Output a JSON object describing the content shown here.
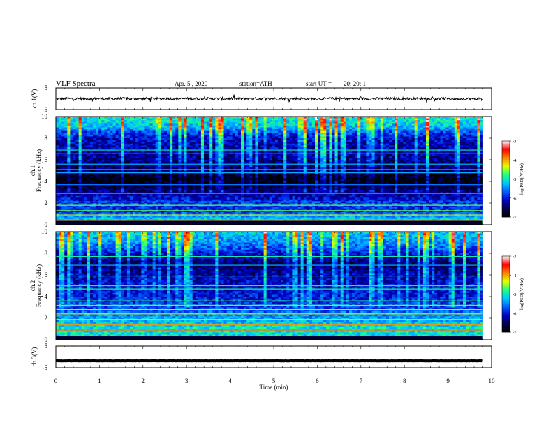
{
  "header": {
    "title": "VLF  Spectra",
    "date": "Apr. 5 , 2020",
    "station": "station=ATH",
    "start_label": "start  UT  =",
    "start_time": "20: 20: 1"
  },
  "colors": {
    "frame": "#000000",
    "background": "#ffffff",
    "colormap": [
      "#000000",
      "#00004a",
      "#0000c8",
      "#0060ff",
      "#00c8ff",
      "#20ff80",
      "#e0ff00",
      "#ff8000",
      "#ff0000",
      "#ffffff"
    ]
  },
  "chart_data": [
    {
      "type": "line",
      "name": "ch1-waveform",
      "ylabel": "ch.1(V)",
      "yticks": [
        "5",
        "-5"
      ],
      "ylim": [
        -5,
        5
      ],
      "xlim": [
        0,
        10
      ],
      "x_range_data": [
        0,
        9.8
      ],
      "baseline": 0,
      "noise_amplitude": 0.6
    },
    {
      "type": "heatmap",
      "name": "ch1-spectrogram",
      "ylabel": "ch.1\nFrequency (kHz)",
      "ylabel_parts": [
        "ch.1",
        "Frequency (kHz)"
      ],
      "yticks": [
        "0",
        "2",
        "4",
        "6",
        "8",
        "10"
      ],
      "ylim": [
        0,
        10
      ],
      "xlim": [
        0,
        10
      ],
      "x_range_data": [
        0,
        9.8
      ],
      "colorbar": {
        "label": "log(PSD)(V²/Hz)",
        "ticks": [
          "-3",
          "-4",
          "-5",
          "-6",
          "-7"
        ],
        "range": [
          -7,
          -3
        ]
      },
      "profile_log_psd_by_kHz": [
        [
          0,
          -4.4
        ],
        [
          0.3,
          -5.0
        ],
        [
          0.6,
          -5.2
        ],
        [
          1.0,
          -5.7
        ],
        [
          1.5,
          -5.9
        ],
        [
          2.0,
          -5.8
        ],
        [
          2.5,
          -6.1
        ],
        [
          3.0,
          -6.3
        ],
        [
          3.5,
          -6.7
        ],
        [
          4.0,
          -6.9
        ],
        [
          4.5,
          -6.8
        ],
        [
          5.0,
          -6.4
        ],
        [
          5.5,
          -6.5
        ],
        [
          6.0,
          -6.3
        ],
        [
          7.0,
          -6.2
        ],
        [
          8.0,
          -6.1
        ],
        [
          8.5,
          -5.8
        ],
        [
          9.0,
          -5.3
        ],
        [
          9.5,
          -5.1
        ],
        [
          10.0,
          -5.0
        ]
      ],
      "lines_kHz": [
        0.4,
        0.9,
        1.3,
        1.8,
        2.1,
        2.9,
        3.7,
        4.8,
        5.1,
        5.6,
        6.6,
        6.9
      ]
    },
    {
      "type": "heatmap",
      "name": "ch2-spectrogram",
      "ylabel": "ch.2\nFrequency (kHz)",
      "ylabel_parts": [
        "ch.2",
        "Frequency (kHz)"
      ],
      "yticks": [
        "0",
        "2",
        "4",
        "6",
        "8",
        "10"
      ],
      "ylim": [
        0,
        10
      ],
      "xlim": [
        0,
        10
      ],
      "x_range_data": [
        0,
        9.8
      ],
      "colorbar": {
        "label": "log(PSD)(V²/Hz)",
        "ticks": [
          "-3",
          "-4",
          "-5",
          "-6",
          "-7"
        ],
        "range": [
          -7,
          -3
        ]
      },
      "profile_log_psd_by_kHz": [
        [
          0,
          -5.0
        ],
        [
          0.5,
          -5.1
        ],
        [
          1.0,
          -5.0
        ],
        [
          1.5,
          -5.2
        ],
        [
          2.0,
          -5.4
        ],
        [
          2.5,
          -5.6
        ],
        [
          3.0,
          -5.8
        ],
        [
          3.5,
          -5.9
        ],
        [
          4.0,
          -6.0
        ],
        [
          5.0,
          -6.1
        ],
        [
          6.0,
          -6.2
        ],
        [
          7.0,
          -6.5
        ],
        [
          8.0,
          -6.0
        ],
        [
          8.5,
          -5.7
        ],
        [
          9.0,
          -5.5
        ],
        [
          9.5,
          -5.3
        ],
        [
          10.0,
          -5.2
        ]
      ],
      "lines_kHz": [
        0.9,
        1.4,
        1.9,
        2.4,
        2.8,
        3.2,
        3.6,
        4.7,
        5.0,
        5.9,
        6.9,
        7.7
      ]
    },
    {
      "type": "line",
      "name": "ch3-waveform",
      "ylabel": "ch.3(V)",
      "yticks": [
        "5",
        "-5"
      ],
      "ylim": [
        -5,
        5
      ],
      "xlim": [
        0,
        10
      ],
      "x_range_data": [
        0,
        9.8
      ],
      "baseline": -1.8,
      "noise_amplitude": 0.05
    }
  ],
  "x_axis": {
    "label": "Time  (min)",
    "ticks": [
      "0",
      "1",
      "2",
      "3",
      "4",
      "5",
      "6",
      "7",
      "8",
      "9",
      "10"
    ]
  }
}
